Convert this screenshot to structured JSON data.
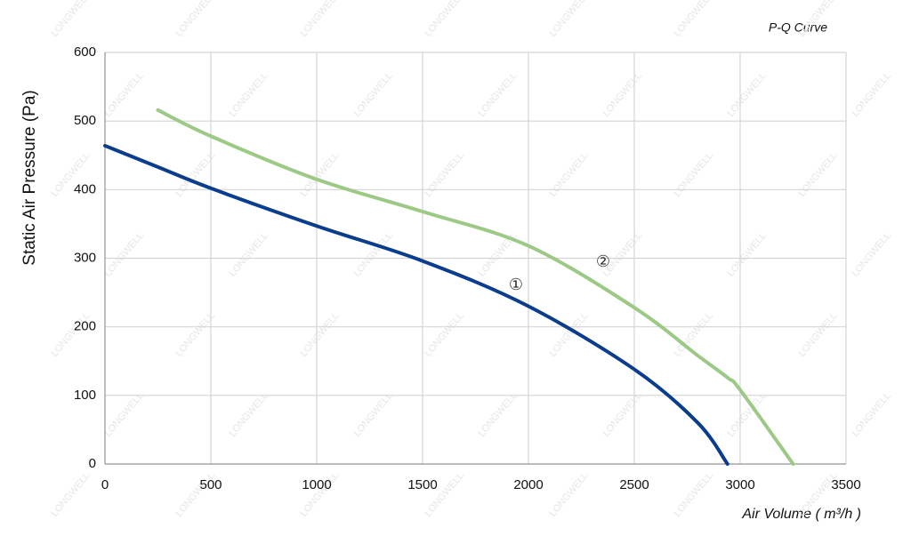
{
  "chart_data": {
    "type": "line",
    "title": "P-Q Curve",
    "x_label": "Air Volume ( m³/h )",
    "y_label": "Static Air Pressure  (Pa)",
    "watermark": "LONGWELL",
    "x": [
      0,
      250,
      500,
      1000,
      1500,
      2000,
      2500,
      2800,
      2940,
      3000,
      3250
    ],
    "series": [
      {
        "name": "①",
        "color": "#0b3d8c",
        "values": [
          464,
          433,
          402,
          347,
          296,
          230,
          138,
          60,
          0,
          null,
          null
        ]
      },
      {
        "name": "②",
        "color": "#9dc987",
        "values": [
          null,
          516,
          478,
          415,
          368,
          318,
          228,
          158,
          126,
          108,
          0
        ]
      }
    ],
    "xlim": [
      0,
      3500
    ],
    "xticks": [
      0,
      500,
      1000,
      1500,
      2000,
      2500,
      3000,
      3500
    ],
    "ylim": [
      0,
      600
    ],
    "yticks": [
      0,
      100,
      200,
      300,
      400,
      500,
      600
    ],
    "grid": true
  }
}
